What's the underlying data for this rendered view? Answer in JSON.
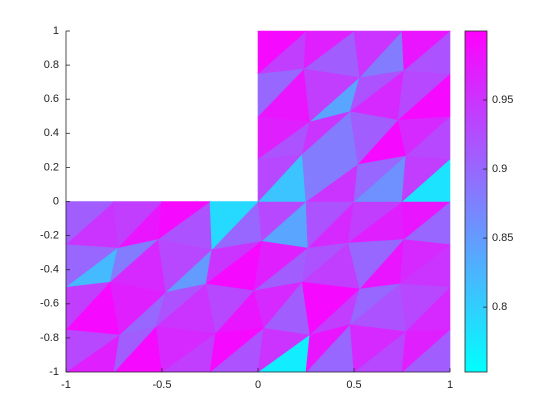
{
  "chart_data": {
    "type": "trimesh",
    "xlim": [
      -1,
      1
    ],
    "ylim": [
      -1,
      1
    ],
    "xticks": [
      -1,
      -0.5,
      0,
      0.5,
      1
    ],
    "yticks": [
      -1,
      -0.8,
      -0.6,
      -0.4,
      -0.2,
      0,
      0.2,
      0.4,
      0.6,
      0.8,
      1
    ],
    "colormap": [
      "#00ffff",
      "#ff00ff"
    ],
    "clim": [
      0.753,
      1
    ],
    "cticks": [
      0.8,
      0.85,
      0.9,
      0.95
    ],
    "nodes": [
      [
        -1,
        -1
      ],
      [
        -0.75,
        -1
      ],
      [
        -0.5,
        -1
      ],
      [
        -0.25,
        -1
      ],
      [
        0,
        -1
      ],
      [
        0.25,
        -1
      ],
      [
        0.5,
        -1
      ],
      [
        0.75,
        -1
      ],
      [
        1,
        -1
      ],
      [
        -1,
        -0.75
      ],
      [
        -0.72,
        -0.78
      ],
      [
        -0.53,
        -0.73
      ],
      [
        -0.22,
        -0.77
      ],
      [
        0.03,
        -0.74
      ],
      [
        0.27,
        -0.78
      ],
      [
        0.48,
        -0.72
      ],
      [
        0.77,
        -0.76
      ],
      [
        1,
        -0.75
      ],
      [
        -1,
        -0.5
      ],
      [
        -0.77,
        -0.47
      ],
      [
        -0.48,
        -0.53
      ],
      [
        -0.27,
        -0.48
      ],
      [
        -0.02,
        -0.52
      ],
      [
        0.23,
        -0.47
      ],
      [
        0.53,
        -0.51
      ],
      [
        0.74,
        -0.48
      ],
      [
        1,
        -0.5
      ],
      [
        -1,
        -0.25
      ],
      [
        -0.73,
        -0.27
      ],
      [
        -0.52,
        -0.22
      ],
      [
        -0.24,
        -0.28
      ],
      [
        0.02,
        -0.23
      ],
      [
        0.26,
        -0.27
      ],
      [
        0.47,
        -0.24
      ],
      [
        0.76,
        -0.22
      ],
      [
        1,
        -0.25
      ],
      [
        -1,
        0
      ],
      [
        -0.75,
        0
      ],
      [
        -0.5,
        0
      ],
      [
        -0.25,
        0
      ],
      [
        0,
        0
      ],
      [
        0.25,
        0
      ],
      [
        0.5,
        0
      ],
      [
        0.75,
        0
      ],
      [
        1,
        0
      ],
      [
        0,
        0.25
      ],
      [
        0.23,
        0.28
      ],
      [
        0.52,
        0.22
      ],
      [
        0.77,
        0.27
      ],
      [
        1,
        0.25
      ],
      [
        0,
        0.5
      ],
      [
        0.27,
        0.47
      ],
      [
        0.48,
        0.53
      ],
      [
        0.73,
        0.48
      ],
      [
        1,
        0.5
      ],
      [
        0,
        0.75
      ],
      [
        0.24,
        0.78
      ],
      [
        0.53,
        0.73
      ],
      [
        0.76,
        0.77
      ],
      [
        1,
        0.75
      ],
      [
        0,
        1
      ],
      [
        0.25,
        1
      ],
      [
        0.5,
        1
      ],
      [
        0.75,
        1
      ],
      [
        1,
        1
      ]
    ],
    "triangles": [
      [
        0,
        1,
        10
      ],
      [
        0,
        10,
        9
      ],
      [
        1,
        2,
        11
      ],
      [
        1,
        11,
        10
      ],
      [
        2,
        3,
        12
      ],
      [
        2,
        12,
        11
      ],
      [
        3,
        4,
        13
      ],
      [
        3,
        13,
        12
      ],
      [
        4,
        5,
        14
      ],
      [
        4,
        14,
        13
      ],
      [
        5,
        6,
        15
      ],
      [
        5,
        15,
        14
      ],
      [
        6,
        7,
        16
      ],
      [
        6,
        16,
        15
      ],
      [
        7,
        8,
        17
      ],
      [
        7,
        17,
        16
      ],
      [
        9,
        10,
        19
      ],
      [
        9,
        19,
        18
      ],
      [
        10,
        11,
        20
      ],
      [
        10,
        20,
        19
      ],
      [
        11,
        12,
        21
      ],
      [
        11,
        21,
        20
      ],
      [
        12,
        13,
        22
      ],
      [
        12,
        22,
        21
      ],
      [
        13,
        14,
        23
      ],
      [
        13,
        23,
        22
      ],
      [
        14,
        15,
        24
      ],
      [
        14,
        24,
        23
      ],
      [
        15,
        16,
        25
      ],
      [
        15,
        25,
        24
      ],
      [
        16,
        17,
        26
      ],
      [
        16,
        26,
        25
      ],
      [
        18,
        19,
        28
      ],
      [
        18,
        28,
        27
      ],
      [
        19,
        20,
        29
      ],
      [
        19,
        29,
        28
      ],
      [
        20,
        21,
        30
      ],
      [
        20,
        30,
        29
      ],
      [
        21,
        22,
        31
      ],
      [
        21,
        31,
        30
      ],
      [
        22,
        23,
        32
      ],
      [
        22,
        32,
        31
      ],
      [
        23,
        24,
        33
      ],
      [
        23,
        33,
        32
      ],
      [
        24,
        25,
        34
      ],
      [
        24,
        34,
        33
      ],
      [
        25,
        26,
        35
      ],
      [
        25,
        35,
        34
      ],
      [
        27,
        28,
        37
      ],
      [
        27,
        37,
        36
      ],
      [
        28,
        29,
        38
      ],
      [
        28,
        38,
        37
      ],
      [
        29,
        30,
        39
      ],
      [
        29,
        39,
        38
      ],
      [
        30,
        31,
        40
      ],
      [
        30,
        40,
        39
      ],
      [
        31,
        32,
        41
      ],
      [
        31,
        41,
        40
      ],
      [
        32,
        33,
        42
      ],
      [
        32,
        42,
        41
      ],
      [
        33,
        34,
        43
      ],
      [
        33,
        43,
        42
      ],
      [
        34,
        35,
        44
      ],
      [
        34,
        44,
        43
      ],
      [
        40,
        41,
        46
      ],
      [
        40,
        46,
        45
      ],
      [
        41,
        42,
        47
      ],
      [
        41,
        47,
        46
      ],
      [
        42,
        43,
        48
      ],
      [
        42,
        48,
        47
      ],
      [
        43,
        44,
        49
      ],
      [
        43,
        49,
        48
      ],
      [
        45,
        46,
        51
      ],
      [
        45,
        51,
        50
      ],
      [
        46,
        47,
        52
      ],
      [
        46,
        52,
        51
      ],
      [
        47,
        48,
        53
      ],
      [
        47,
        53,
        52
      ],
      [
        48,
        49,
        54
      ],
      [
        48,
        54,
        53
      ],
      [
        50,
        51,
        56
      ],
      [
        50,
        56,
        55
      ],
      [
        51,
        52,
        57
      ],
      [
        51,
        57,
        56
      ],
      [
        52,
        53,
        58
      ],
      [
        52,
        58,
        57
      ],
      [
        53,
        54,
        59
      ],
      [
        53,
        59,
        58
      ],
      [
        55,
        56,
        61
      ],
      [
        55,
        61,
        60
      ],
      [
        56,
        57,
        62
      ],
      [
        56,
        62,
        61
      ],
      [
        57,
        58,
        63
      ],
      [
        57,
        63,
        62
      ],
      [
        58,
        59,
        64
      ],
      [
        58,
        64,
        63
      ]
    ],
    "values": [
      0.97,
      0.93,
      0.99,
      0.91,
      0.94,
      0.96,
      0.92,
      0.99,
      0.77,
      0.95,
      0.9,
      0.98,
      0.93,
      0.96,
      0.91,
      0.97,
      0.99,
      0.94,
      0.9,
      0.97,
      0.95,
      0.92,
      0.98,
      0.93,
      0.91,
      0.96,
      0.94,
      0.99,
      0.92,
      0.9,
      0.96,
      0.93,
      0.82,
      0.9,
      0.96,
      0.88,
      0.85,
      0.93,
      0.99,
      0.95,
      0.91,
      0.97,
      0.94,
      0.92,
      0.98,
      0.9,
      0.95,
      0.96,
      0.95,
      0.91,
      0.98,
      0.94,
      0.92,
      0.99,
      0.9,
      0.79,
      0.84,
      0.93,
      0.96,
      0.92,
      0.97,
      0.94,
      0.9,
      0.98,
      0.81,
      0.93,
      0.95,
      0.88,
      0.86,
      0.9,
      0.78,
      0.94,
      0.92,
      0.97,
      0.88,
      0.95,
      0.99,
      0.91,
      0.93,
      0.96,
      0.98,
      0.9,
      0.84,
      0.94,
      0.96,
      0.92,
      0.99,
      0.93,
      0.94,
      0.99,
      0.91,
      0.97,
      0.88,
      0.95,
      0.92,
      0.98
    ]
  }
}
